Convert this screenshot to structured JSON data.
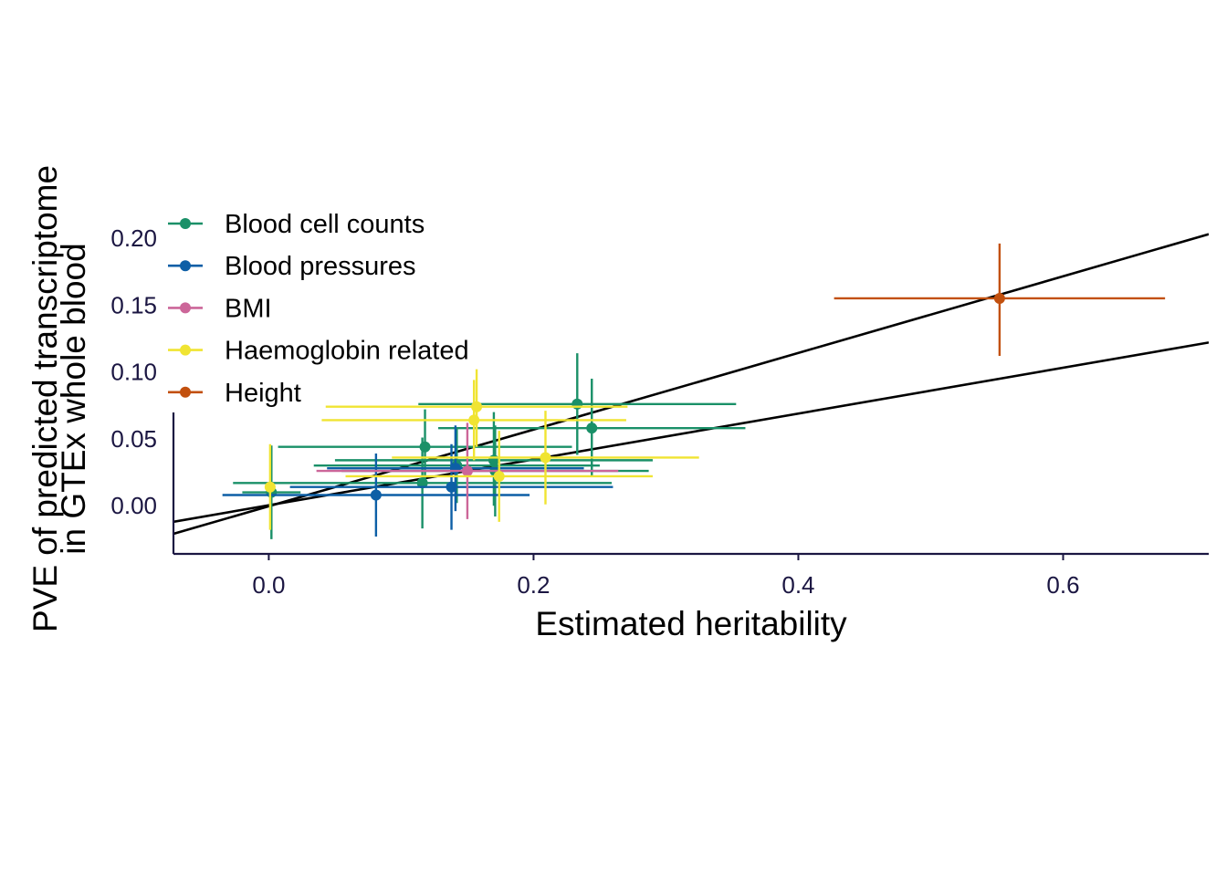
{
  "chart_data": {
    "type": "scatter",
    "xlabel": "Estimated heritability",
    "ylabel": [
      "PVE of predicted transcriptome",
      "in GTEx whole blood"
    ],
    "xlim": [
      -0.072,
      0.71
    ],
    "ylim": [
      -0.036,
      0.2
    ],
    "x_ticks": [
      "0.0",
      "0.2",
      "0.4",
      "0.6"
    ],
    "y_ticks": [
      "0.00",
      "0.05",
      "0.10",
      "0.15",
      "0.20"
    ],
    "grid": false,
    "legend_position": "top-left",
    "series": [
      {
        "name": "Blood cell counts",
        "color": "#1a9068",
        "points": [
          {
            "x": 0.002,
            "y": 0.01,
            "xlo": -0.02,
            "xhi": 0.024,
            "ylo": -0.025,
            "yhi": 0.045
          },
          {
            "x": 0.118,
            "y": 0.044,
            "xlo": 0.007,
            "xhi": 0.229,
            "ylo": 0.016,
            "yhi": 0.072
          },
          {
            "x": 0.142,
            "y": 0.03,
            "xlo": 0.034,
            "xhi": 0.25,
            "ylo": 0.002,
            "yhi": 0.058
          },
          {
            "x": 0.116,
            "y": 0.017,
            "xlo": -0.027,
            "xhi": 0.259,
            "ylo": -0.017,
            "yhi": 0.051
          },
          {
            "x": 0.17,
            "y": 0.034,
            "xlo": 0.05,
            "xhi": 0.29,
            "ylo": 0.0,
            "yhi": 0.07
          },
          {
            "x": 0.171,
            "y": 0.026,
            "xlo": 0.055,
            "xhi": 0.287,
            "ylo": -0.008,
            "yhi": 0.06
          },
          {
            "x": 0.233,
            "y": 0.076,
            "xlo": 0.113,
            "xhi": 0.353,
            "ylo": 0.038,
            "yhi": 0.114
          },
          {
            "x": 0.244,
            "y": 0.058,
            "xlo": 0.128,
            "xhi": 0.36,
            "ylo": 0.022,
            "yhi": 0.095
          }
        ]
      },
      {
        "name": "Blood pressures",
        "color": "#0d5fa6",
        "points": [
          {
            "x": 0.081,
            "y": 0.008,
            "xlo": -0.035,
            "xhi": 0.197,
            "ylo": -0.023,
            "yhi": 0.039
          },
          {
            "x": 0.138,
            "y": 0.014,
            "xlo": 0.016,
            "xhi": 0.26,
            "ylo": -0.018,
            "yhi": 0.046
          },
          {
            "x": 0.141,
            "y": 0.028,
            "xlo": 0.044,
            "xhi": 0.238,
            "ylo": -0.004,
            "yhi": 0.06
          }
        ]
      },
      {
        "name": "BMI",
        "color": "#cc6699",
        "points": [
          {
            "x": 0.15,
            "y": 0.026,
            "xlo": 0.036,
            "xhi": 0.264,
            "ylo": -0.01,
            "yhi": 0.062
          }
        ]
      },
      {
        "name": "Haemoglobin related",
        "color": "#f0e432",
        "points": [
          {
            "x": 0.001,
            "y": 0.014,
            "xlo": -0.001,
            "xhi": 0.003,
            "ylo": -0.018,
            "yhi": 0.046
          },
          {
            "x": 0.157,
            "y": 0.074,
            "xlo": 0.043,
            "xhi": 0.271,
            "ylo": 0.044,
            "yhi": 0.102
          },
          {
            "x": 0.155,
            "y": 0.064,
            "xlo": 0.04,
            "xhi": 0.27,
            "ylo": 0.034,
            "yhi": 0.094
          },
          {
            "x": 0.209,
            "y": 0.036,
            "xlo": 0.093,
            "xhi": 0.325,
            "ylo": 0.001,
            "yhi": 0.071
          },
          {
            "x": 0.174,
            "y": 0.022,
            "xlo": 0.058,
            "xhi": 0.29,
            "ylo": -0.012,
            "yhi": 0.056
          }
        ]
      },
      {
        "name": "Height",
        "color": "#c2500e",
        "points": [
          {
            "x": 0.552,
            "y": 0.155,
            "xlo": 0.427,
            "xhi": 0.677,
            "ylo": 0.112,
            "yhi": 0.196
          }
        ]
      }
    ],
    "lines": [
      {
        "x0": -0.072,
        "y0": -0.021,
        "x1": 0.71,
        "y1": 0.203,
        "color": "#000000"
      },
      {
        "x0": -0.072,
        "y0": -0.012,
        "x1": 0.71,
        "y1": 0.122,
        "color": "#000000"
      }
    ]
  }
}
